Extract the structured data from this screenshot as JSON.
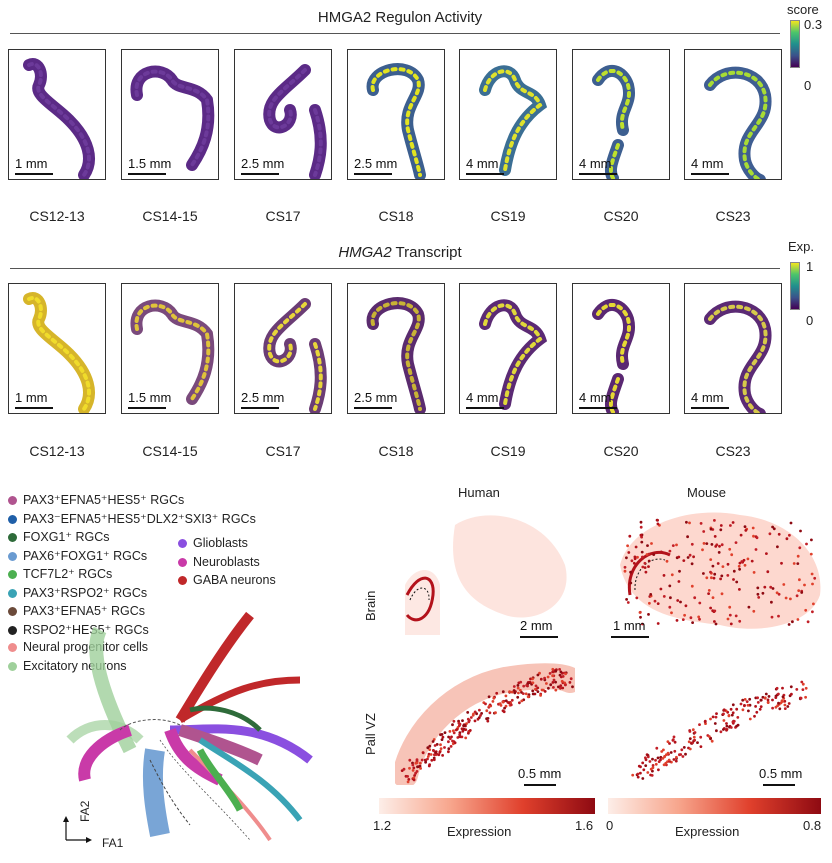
{
  "top": {
    "title": "HMGA2 Regulon Activity",
    "colorbar": {
      "title": "score",
      "max": "0.3",
      "min": "0"
    },
    "panels": [
      {
        "stage": "CS12-13",
        "scale": "1 mm"
      },
      {
        "stage": "CS14-15",
        "scale": "1.5 mm"
      },
      {
        "stage": "CS17",
        "scale": "2.5 mm"
      },
      {
        "stage": "CS18",
        "scale": "2.5 mm"
      },
      {
        "stage": "CS19",
        "scale": "4 mm"
      },
      {
        "stage": "CS20",
        "scale": "4 mm"
      },
      {
        "stage": "CS23",
        "scale": "4 mm"
      }
    ]
  },
  "middle": {
    "title_gene": "HMGA2",
    "title_rest": " Transcript",
    "colorbar": {
      "title": "Exp.",
      "max": "1",
      "min": "0"
    },
    "panels": [
      {
        "stage": "CS12-13",
        "scale": "1 mm"
      },
      {
        "stage": "CS14-15",
        "scale": "1.5 mm"
      },
      {
        "stage": "CS17",
        "scale": "2.5 mm"
      },
      {
        "stage": "CS18",
        "scale": "2.5 mm"
      },
      {
        "stage": "CS19",
        "scale": "4 mm"
      },
      {
        "stage": "CS20",
        "scale": "4 mm"
      },
      {
        "stage": "CS23",
        "scale": "4 mm"
      }
    ]
  },
  "legend": {
    "col1": [
      {
        "text": "PAX3⁺EFNA5⁺HES5⁺ RGCs",
        "color": "#b0548f"
      },
      {
        "text": "PAX3⁻EFNA5⁺HES5⁺DLX2⁺SXI3⁺ RGCs",
        "color": "#1f5fa8"
      },
      {
        "text": "FOXG1⁺ RGCs",
        "color": "#2e6b3a"
      },
      {
        "text": "PAX6⁺FOXG1⁺ RGCs",
        "color": "#6a9bd1"
      },
      {
        "text": "TCF7L2⁺ RGCs",
        "color": "#4caf50"
      },
      {
        "text": "PAX3⁺RSPO2⁺ RGCs",
        "color": "#3aa3b5"
      },
      {
        "text": "PAX3⁺EFNA5⁺ RGCs",
        "color": "#6b4a3a"
      },
      {
        "text": "RSPO2⁺HES5⁺ RGCs",
        "color": "#222222"
      },
      {
        "text": "Neural progenitor cells",
        "color": "#ef8d8d"
      },
      {
        "text": "Excitatory neurons",
        "color": "#9fd09b"
      }
    ],
    "col2": [
      {
        "text": "Glioblasts",
        "color": "#8a4fe0"
      },
      {
        "text": "Neuroblasts",
        "color": "#c93aa8"
      },
      {
        "text": "GABA neurons",
        "color": "#c0282a"
      }
    ]
  },
  "embedding": {
    "xlabel": "FA1",
    "ylabel": "FA2"
  },
  "spatial": {
    "col_human": "Human",
    "col_mouse": "Mouse",
    "row_brain": "Brain",
    "row_pall": "Pall VZ",
    "scale_human_brain": "2 mm",
    "scale_mouse_brain": "1 mm",
    "scale_human_pall": "0.5 mm",
    "scale_mouse_pall": "0.5 mm",
    "grad_human": {
      "label": "Expression",
      "min": "1.2",
      "max": "1.6"
    },
    "grad_mouse": {
      "label": "Expression",
      "min": "0",
      "max": "0.8"
    }
  }
}
